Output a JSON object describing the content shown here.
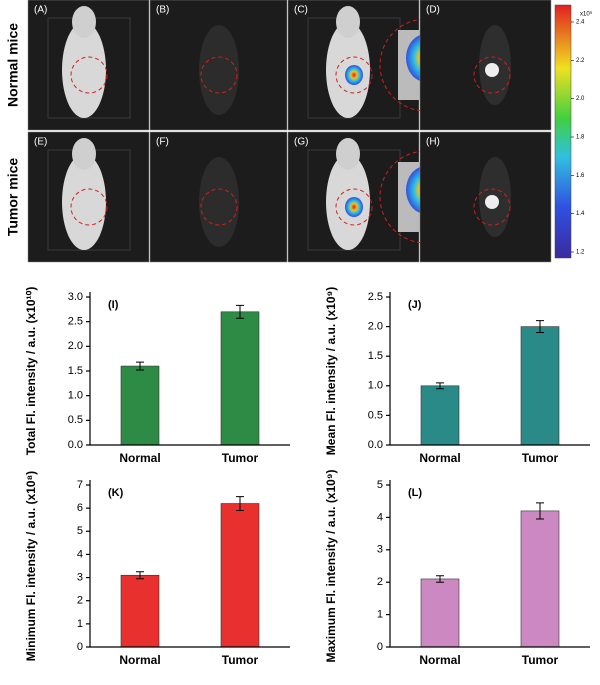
{
  "panels": {
    "labels": [
      "(A)",
      "(B)",
      "(C)",
      "(D)",
      "(E)",
      "(F)",
      "(G)",
      "(H)"
    ],
    "row_labels": [
      "Normal mice",
      "Tumor mice"
    ]
  },
  "colorbar": {
    "unit": "x10⁹",
    "ticks": [
      1.2,
      1.4,
      1.6,
      1.8,
      {
        "value": 2,
        "label": "2.0"
      },
      2.2,
      2.4
    ]
  },
  "chart_data": [
    {
      "type": "bar",
      "panel_label": "(I)",
      "ylabel": "Total Fl. intensity / a.u. (x10¹⁰)",
      "categories": [
        "Normal",
        "Tumor"
      ],
      "values": [
        1.6,
        2.7
      ],
      "errors": [
        0.08,
        0.13
      ],
      "color": "#2e8b46",
      "ylim": [
        0,
        3
      ],
      "yticks": [
        {
          "value": 0,
          "label": "0.0"
        },
        0.5,
        {
          "value": 1,
          "label": "1.0"
        },
        1.5,
        {
          "value": 2,
          "label": "2.0"
        },
        2.5,
        {
          "value": 3,
          "label": "3.0"
        }
      ]
    },
    {
      "type": "bar",
      "panel_label": "(J)",
      "ylabel": "Mean Fl. intensity / a.u. (x10⁹)",
      "categories": [
        "Normal",
        "Tumor"
      ],
      "values": [
        1.0,
        2.0
      ],
      "errors": [
        0.05,
        0.1
      ],
      "color": "#2a8a88",
      "ylim": [
        0,
        2.5
      ],
      "yticks": [
        {
          "value": 0,
          "label": "0.0"
        },
        0.5,
        {
          "value": 1,
          "label": "1.0"
        },
        1.5,
        {
          "value": 2,
          "label": "2.0"
        },
        2.5
      ]
    },
    {
      "type": "bar",
      "panel_label": "(K)",
      "ylabel": "Minimum Fl. intensity / a.u. (x10⁸)",
      "categories": [
        "Normal",
        "Tumor"
      ],
      "values": [
        3.1,
        6.2
      ],
      "errors": [
        0.15,
        0.3
      ],
      "color": "#e8302f",
      "ylim": [
        0,
        7
      ],
      "yticks": [
        0,
        1,
        2,
        3,
        4,
        5,
        6,
        7
      ]
    },
    {
      "type": "bar",
      "panel_label": "(L)",
      "ylabel": "Maximum Fl. intensity / a.u. (x10⁹)",
      "categories": [
        "Normal",
        "Tumor"
      ],
      "values": [
        2.1,
        4.2
      ],
      "errors": [
        0.1,
        0.25
      ],
      "color": "#cc88c0",
      "ylim": [
        0,
        5
      ],
      "yticks": [
        0,
        1,
        2,
        3,
        4,
        5
      ]
    }
  ]
}
